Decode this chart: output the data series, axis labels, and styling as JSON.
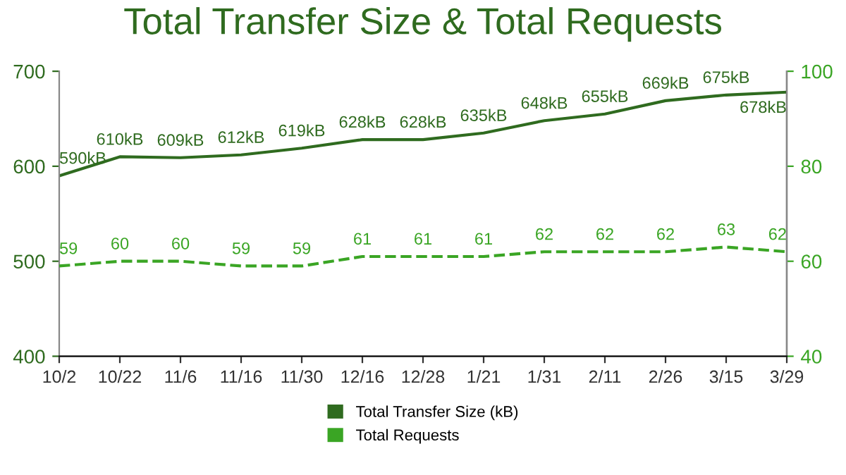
{
  "chart_data": {
    "type": "line",
    "title": "Total Transfer Size & Total Requests",
    "categories": [
      "10/2",
      "10/22",
      "11/6",
      "11/16",
      "11/30",
      "12/16",
      "12/28",
      "1/21",
      "1/31",
      "2/11",
      "2/26",
      "3/15",
      "3/29"
    ],
    "series": [
      {
        "name": "Total Transfer Size (kB)",
        "color": "#2f6b1f",
        "line_style": "solid",
        "values": [
          590,
          610,
          609,
          612,
          619,
          628,
          628,
          635,
          648,
          655,
          669,
          675,
          678
        ],
        "value_labels": [
          "590kB",
          "610kB",
          "609kB",
          "612kB",
          "619kB",
          "628kB",
          "628kB",
          "635kB",
          "648kB",
          "655kB",
          "669kB",
          "675kB",
          "678kB"
        ]
      },
      {
        "name": "Total Requests",
        "color": "#3aa524",
        "line_style": "dashed",
        "axis": "y2",
        "values": [
          59,
          60,
          60,
          59,
          59,
          61,
          61,
          61,
          62,
          62,
          62,
          63,
          62
        ],
        "value_labels": [
          "59",
          "60",
          "60",
          "59",
          "59",
          "61",
          "61",
          "61",
          "62",
          "62",
          "62",
          "63",
          "62"
        ]
      }
    ],
    "ylim": [
      400,
      700
    ],
    "yticks": [
      400,
      500,
      600,
      700
    ],
    "y2lim": [
      40,
      100
    ],
    "y2ticks": [
      40,
      60,
      80,
      100
    ],
    "grid": false,
    "legend": "bottom",
    "marker": "none"
  }
}
